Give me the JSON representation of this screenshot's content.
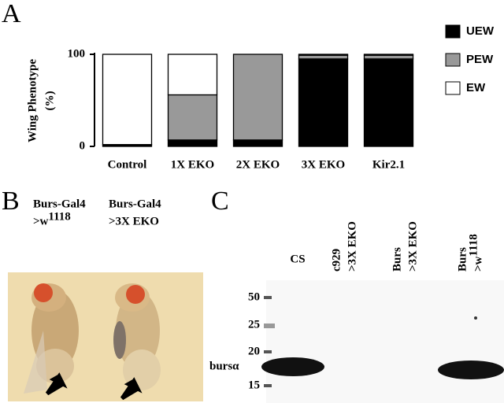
{
  "chart_data": {
    "type": "stacked_bar",
    "panel_letter": "A",
    "y_label_lines": [
      "Wing Phenotype",
      "(%)"
    ],
    "categories": [
      "Control",
      "1X EKO",
      "2X EKO",
      "3X EKO",
      "Kir2.1"
    ],
    "series": [
      {
        "name": "UEW",
        "color": "#000000",
        "values": [
          2,
          7,
          7,
          95,
          95
        ]
      },
      {
        "name": "PEW",
        "color": "#999999",
        "values": [
          0,
          49,
          93,
          4,
          4
        ]
      },
      {
        "name": "EW",
        "color": "#ffffff",
        "values": [
          98,
          44,
          0,
          1,
          1
        ]
      }
    ],
    "ylim": [
      0,
      100
    ],
    "yticks": [
      0,
      100
    ],
    "legend": "right"
  },
  "panel_b": {
    "letter": "B",
    "labels": [
      {
        "lines": [
          "Burs-Gal4",
          ">w"
        ],
        "sup": "1118"
      },
      {
        "lines": [
          "Burs-Gal4",
          ">3X EKO"
        ]
      }
    ]
  },
  "panel_c": {
    "letter": "C",
    "lanes": [
      {
        "lines": [
          "CS"
        ]
      },
      {
        "lines": [
          "c929",
          ">3X EKO"
        ]
      },
      {
        "lines": [
          "Burs",
          ">3X EKO"
        ]
      },
      {
        "lines": [
          "Burs",
          ">w"
        ],
        "sup": "1118"
      }
    ],
    "markers": [
      50,
      25,
      20,
      15
    ],
    "band_label": "bursα"
  }
}
